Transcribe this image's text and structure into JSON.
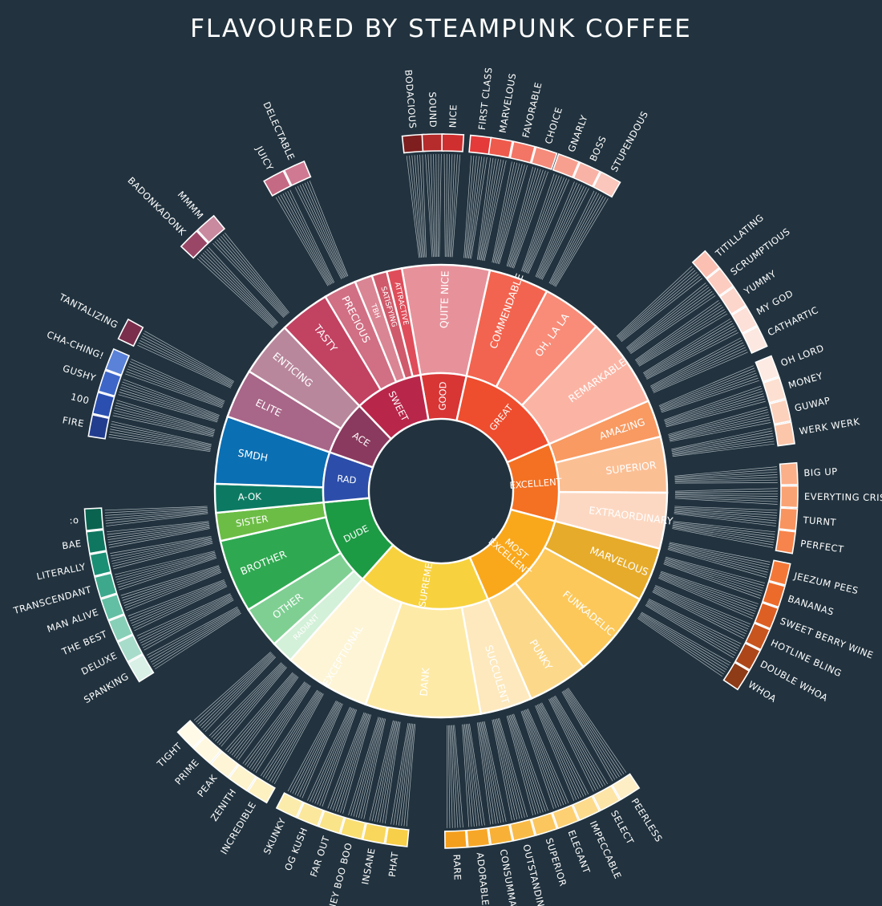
{
  "title": "FLAVOURED BY STEAMPUNK COFFEE",
  "wheel": {
    "inner": [
      {
        "label": "GOOD",
        "color": "#d83535",
        "weight": 1
      },
      {
        "label": "GREAT",
        "color": "#ee4d2e",
        "weight": 2.4
      },
      {
        "label": "EXCELLENT",
        "color": "#f47022",
        "weight": 1.7
      },
      {
        "label": "MOST EXCELLENT",
        "color": "#f9a81c",
        "weight": 2.3
      },
      {
        "label": "SUPREME",
        "color": "#f7d23e",
        "weight": 2.9
      },
      {
        "label": "DUDE",
        "color": "#1d9a44",
        "weight": 1.9
      },
      {
        "label": "RAD",
        "color": "#2c4eaa",
        "weight": 1.1
      },
      {
        "label": "ACE",
        "color": "#8a3a5e",
        "weight": 1.2
      },
      {
        "label": "SWEET",
        "color": "#b8274a",
        "weight": 1.5
      }
    ],
    "middle": [
      {
        "label": "QUITE NICE",
        "color": "#e7929b",
        "parent": "GOOD",
        "weight": 3
      },
      {
        "label": "COMMENDABLE",
        "color": "#f2644f",
        "parent": "GREAT",
        "weight": 2
      },
      {
        "label": "OH, LA LA",
        "color": "#f88c78",
        "parent": "GREAT",
        "weight": 2
      },
      {
        "label": "REMARKABLE",
        "color": "#fbb4a4",
        "parent": "GREAT",
        "weight": 3
      },
      {
        "label": "AMAZING",
        "color": "#f89a62",
        "parent": "EXCELLENT",
        "weight": 2
      },
      {
        "label": "SUPERIOR",
        "color": "#fbbf94",
        "parent": "EXCELLENT",
        "weight": 3
      },
      {
        "label": "EXTRAORDINARY",
        "color": "#fcd8c2",
        "parent": "EXCELLENT",
        "weight": 3
      },
      {
        "label": "MARVELOUS",
        "color": "#e6ab2a",
        "parent": "MOST EXCELLENT",
        "weight": 1.6
      },
      {
        "label": "FUNKADELIC",
        "color": "#fcc85a",
        "parent": "MOST EXCELLENT",
        "weight": 2.6
      },
      {
        "label": "PUNKY",
        "color": "#fcd98a",
        "parent": "MOST EXCELLENT",
        "weight": 1.8
      },
      {
        "label": "SUCCULENT",
        "color": "#fde9bd",
        "parent": "SUPREME",
        "weight": 1.8
      },
      {
        "label": "DANK",
        "color": "#fdeaa6",
        "parent": "SUPREME",
        "weight": 4
      },
      {
        "label": "EXCEPTIONAL",
        "color": "#fdf5d6",
        "parent": "SUPREME",
        "weight": 3
      },
      {
        "label": "RADIANT",
        "color": "#d3f0d8",
        "parent": "DUDE",
        "weight": 0.8
      },
      {
        "label": "OTHER",
        "color": "#7fcf93",
        "parent": "DUDE",
        "weight": 1.5
      },
      {
        "label": "BROTHER",
        "color": "#2fa951",
        "parent": "DUDE",
        "weight": 2.6
      },
      {
        "label": "SISTER",
        "color": "#6cbd45",
        "parent": "DUDE",
        "weight": 1
      },
      {
        "label": "A-OK",
        "color": "#0c7a62",
        "parent": "RAD",
        "weight": 1.1
      },
      {
        "label": "SMDH",
        "color": "#0b6fb3",
        "parent": "RAD",
        "weight": 2.6
      },
      {
        "label": "ELITE",
        "color": "#a86688",
        "parent": "ACE",
        "weight": 1.6
      },
      {
        "label": "ENTICING",
        "color": "#b9879c",
        "parent": "ACE",
        "weight": 1.8
      },
      {
        "label": "TASTY",
        "color": "#c24262",
        "parent": "SWEET",
        "weight": 2
      },
      {
        "label": "PRECIOUS",
        "color": "#d16f84",
        "parent": "SWEET",
        "weight": 1.3
      },
      {
        "label": "TBH",
        "color": "#da8594",
        "parent": "SWEET",
        "weight": 0.7
      },
      {
        "label": "SATISFYING",
        "color": "#cf5a6b",
        "parent": "SWEET",
        "weight": 0.6
      },
      {
        "label": "ATTRACTIVE",
        "color": "#df4d5a",
        "parent": "SWEET",
        "weight": 0.6
      }
    ],
    "outer": [
      {
        "label": "BODACIOUS",
        "color": "#7e1e1e",
        "angle": -4.5
      },
      {
        "label": "SOUND",
        "color": "#b62b2b",
        "angle": -1.3
      },
      {
        "label": "NICE",
        "color": "#cf2f2f",
        "angle": 1.9
      },
      {
        "label": "FIRST CLASS",
        "color": "#e43a3a",
        "angle": 6.5
      },
      {
        "label": "MARVELOUS",
        "color": "#ee5a4c",
        "angle": 9.8
      },
      {
        "label": "FAVORABLE",
        "color": "#f37565",
        "angle": 13.5
      },
      {
        "label": "CHOICE",
        "color": "#f58b7b",
        "angle": 17.2
      },
      {
        "label": "GNARLY",
        "color": "#f8a090",
        "angle": 21
      },
      {
        "label": "BOSS",
        "color": "#f9b3a6",
        "angle": 24.7
      },
      {
        "label": "STUPENDOUS",
        "color": "#fbc6bb",
        "angle": 28.4
      },
      {
        "label": "TITILLATING",
        "color": "#fbc0b2",
        "angle": 49.5
      },
      {
        "label": "SCRUMPTIOUS",
        "color": "#fcccc0",
        "angle": 53.2
      },
      {
        "label": "YUMMY",
        "color": "#fcd6cb",
        "angle": 56.9
      },
      {
        "label": "MY GOD",
        "color": "#fde0d7",
        "angle": 60.6
      },
      {
        "label": "CATHARTIC",
        "color": "#fde8e1",
        "angle": 64.3
      },
      {
        "label": "OH LORD",
        "color": "#fdeae2",
        "angle": 69.5
      },
      {
        "label": "MONEY",
        "color": "#fde0d1",
        "angle": 73.2
      },
      {
        "label": "GUWAP",
        "color": "#fcd2bd",
        "angle": 76.9
      },
      {
        "label": "WERK WERK",
        "color": "#fcc6aa",
        "angle": 80.6
      },
      {
        "label": "BIG UP",
        "color": "#fbb08a",
        "angle": 87.2
      },
      {
        "label": "EVERYTING CRISS",
        "color": "#f9a375",
        "angle": 90.9
      },
      {
        "label": "TURNT",
        "color": "#f89460",
        "angle": 94.6
      },
      {
        "label": "PERFECT",
        "color": "#f6844c",
        "angle": 98.3
      },
      {
        "label": "JEEZUM PEES",
        "color": "#f37838",
        "angle": 103.5
      },
      {
        "label": "BANANAS",
        "color": "#ec6b2b",
        "angle": 107.2
      },
      {
        "label": "SWEET BERRY WINE",
        "color": "#de5f23",
        "angle": 110.9
      },
      {
        "label": "HOTLINE BLING",
        "color": "#c8541e",
        "angle": 114.6
      },
      {
        "label": "DOUBLE WHOA",
        "color": "#ad471a",
        "angle": 118.3
      },
      {
        "label": "WHOA",
        "color": "#8e3b17",
        "angle": 122
      },
      {
        "label": "PEERLESS",
        "color": "#fdeec6",
        "angle": 148
      },
      {
        "label": "SELECT",
        "color": "#fde5a8",
        "angle": 151.7
      },
      {
        "label": "IMPECCABLE",
        "color": "#fcdb8c",
        "angle": 155.4
      },
      {
        "label": "ELEGANT",
        "color": "#fcd073",
        "angle": 159.1
      },
      {
        "label": "SUPERIOR",
        "color": "#fbc65d",
        "angle": 162.8
      },
      {
        "label": "OUTSTANDING",
        "color": "#f9bb47",
        "angle": 166.5
      },
      {
        "label": "CONSUMMATE",
        "color": "#f8b136",
        "angle": 170.2
      },
      {
        "label": "ADORABLE",
        "color": "#f7a728",
        "angle": 173.9
      },
      {
        "label": "RARE",
        "color": "#f59f1e",
        "angle": 177.6
      },
      {
        "label": "PHAT",
        "color": "#f7cf48",
        "angle": 187.2
      },
      {
        "label": "INSANE",
        "color": "#f8d75c",
        "angle": 190.9
      },
      {
        "label": "HONEY BOO BOO",
        "color": "#f9de72",
        "angle": 194.6
      },
      {
        "label": "FAR OUT",
        "color": "#fae48a",
        "angle": 198.3
      },
      {
        "label": "OG KUSH",
        "color": "#fbe89d",
        "angle": 202
      },
      {
        "label": "SKUNKY",
        "color": "#fcecac",
        "angle": 205.7
      },
      {
        "label": "INCREDIBLE",
        "color": "#fdf1c2",
        "angle": 211
      },
      {
        "label": "ZENITH",
        "color": "#fdf3cc",
        "angle": 214.7
      },
      {
        "label": "PEAK",
        "color": "#fef5d6",
        "angle": 218.4
      },
      {
        "label": "PRIME",
        "color": "#fef8e0",
        "angle": 222.1
      },
      {
        "label": "TIGHT",
        "color": "#fffae8",
        "angle": 225.8
      },
      {
        "label": "SPANKING",
        "color": "#d8f0e6",
        "angle": 239.5
      },
      {
        "label": "DELUXE",
        "color": "#a7dcca",
        "angle": 243.2
      },
      {
        "label": "THE BEST",
        "color": "#88cfb8",
        "angle": 246.9
      },
      {
        "label": "MAN ALIVE",
        "color": "#63bfa3",
        "angle": 250.6
      },
      {
        "label": "TRANSCENDANT",
        "color": "#3ea88c",
        "angle": 254.3
      },
      {
        "label": "LITERALLY",
        "color": "#1a8f74",
        "angle": 258
      },
      {
        "label": "BAE",
        "color": "#0f7760",
        "angle": 261.7
      },
      {
        "label": ":o",
        "color": "#0a634f",
        "angle": 265.4
      },
      {
        "label": "FIRE",
        "color": "#233d8e",
        "angle": 280.6
      },
      {
        "label": "100",
        "color": "#2b4fb0",
        "angle": 284.3
      },
      {
        "label": "GUSHY",
        "color": "#3d66c8",
        "angle": 288
      },
      {
        "label": "CHA-CHING!",
        "color": "#5a82d8",
        "angle": 291.7
      },
      {
        "label": "TANTALIZING",
        "color": "#7a2e4c",
        "angle": 297
      },
      {
        "label": "BADONKADONK",
        "color": "#9a4767",
        "angle": 315
      },
      {
        "label": "MMMM",
        "color": "#c9899f",
        "angle": 318.7
      },
      {
        "label": "JUICY",
        "color": "#c56a84",
        "angle": 332
      },
      {
        "label": "DELECTABLE",
        "color": "#cf7a92",
        "angle": 335.7
      }
    ]
  }
}
